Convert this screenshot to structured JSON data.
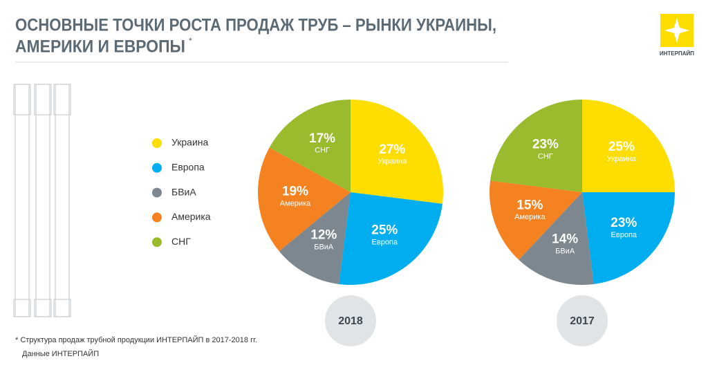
{
  "header": {
    "title_line1": "ОСНОВНЫЕ ТОЧКИ РОСТА ПРОДАЖ ТРУБ – РЫНКИ УКРАИНЫ,",
    "title_line2": "АМЕРИКИ И ЕВРОПЫ",
    "title_mark": "*",
    "logo": "ИНТЕРПАЙП"
  },
  "footnote": {
    "line1": "* Структура продаж трубной продукции ИНТЕРПАЙП в 2017-2018 гг.",
    "line2": "Данные ИНТЕРПАЙП"
  },
  "chart_data": [
    {
      "type": "pie",
      "title": "2018",
      "categories": [
        "Украина",
        "Европа",
        "БВиА",
        "Америка",
        "СНГ"
      ],
      "values": [
        27,
        25,
        12,
        19,
        17
      ],
      "value_labels": [
        "27%",
        "25%",
        "12%",
        "19%",
        "17%"
      ],
      "colors": [
        "#fedd00",
        "#00aeef",
        "#7c878f",
        "#f58220",
        "#9bbb2f"
      ]
    },
    {
      "type": "pie",
      "title": "2017",
      "categories": [
        "Украина",
        "Европа",
        "БВиА",
        "Америка",
        "СНГ"
      ],
      "values": [
        25,
        23,
        14,
        15,
        23
      ],
      "value_labels": [
        "25%",
        "23%",
        "14%",
        "15%",
        "23%"
      ],
      "colors": [
        "#fedd00",
        "#00aeef",
        "#7c878f",
        "#f58220",
        "#9bbb2f"
      ]
    }
  ]
}
